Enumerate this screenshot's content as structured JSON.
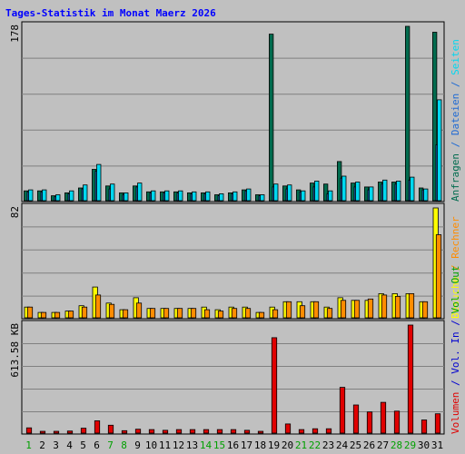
{
  "chart_data": [
    {
      "type": "bar",
      "panel": "top",
      "title": "Tages-Statistik im Monat Maerz 2026",
      "ymax_label": "178",
      "ylim": [
        0,
        178
      ],
      "categories": [
        "1",
        "2",
        "3",
        "4",
        "5",
        "6",
        "7",
        "8",
        "9",
        "10",
        "11",
        "12",
        "13",
        "14",
        "15",
        "16",
        "17",
        "18",
        "19",
        "20",
        "21",
        "22",
        "23",
        "24",
        "25",
        "26",
        "27",
        "28",
        "29",
        "30",
        "31"
      ],
      "series": [
        {
          "name": "Anfragen",
          "color": "#006b4e",
          "values": [
            10,
            10,
            5,
            8,
            13,
            32,
            15,
            8,
            15,
            9,
            9,
            9,
            8,
            8,
            6,
            8,
            11,
            6,
            170,
            15,
            11,
            18,
            17,
            40,
            18,
            14,
            19,
            19,
            178,
            13,
            172
          ]
        },
        {
          "name": "Dateien",
          "color": "#1e6ad4",
          "values": [
            9,
            9,
            4,
            7,
            12,
            30,
            12,
            6,
            14,
            8,
            8,
            8,
            7,
            7,
            5,
            7,
            10,
            5,
            14,
            12,
            9,
            14,
            7,
            23,
            14,
            11,
            17,
            17,
            21,
            11,
            57
          ]
        },
        {
          "name": "Seiten",
          "color": "#00d8f0",
          "values": [
            11,
            11,
            6,
            10,
            16,
            37,
            17,
            8,
            18,
            10,
            10,
            10,
            9,
            9,
            7,
            9,
            12,
            6,
            17,
            16,
            10,
            20,
            10,
            25,
            19,
            14,
            21,
            20,
            24,
            12,
            103
          ]
        }
      ]
    },
    {
      "type": "bar",
      "panel": "middle",
      "ymax_label": "82",
      "ylim": [
        0,
        82
      ],
      "categories": [
        "1",
        "2",
        "3",
        "4",
        "5",
        "6",
        "7",
        "8",
        "9",
        "10",
        "11",
        "12",
        "13",
        "14",
        "15",
        "16",
        "17",
        "18",
        "19",
        "20",
        "21",
        "22",
        "23",
        "24",
        "25",
        "26",
        "27",
        "28",
        "29",
        "30",
        "31"
      ],
      "series": [
        {
          "name": "Besuche",
          "color": "#ffff00",
          "values": [
            8,
            4,
            4,
            5,
            9,
            23,
            11,
            6,
            15,
            7,
            7,
            7,
            7,
            8,
            6,
            8,
            8,
            4,
            8,
            12,
            12,
            12,
            8,
            15,
            13,
            13,
            18,
            18,
            18,
            12,
            82
          ]
        },
        {
          "name": "Rechner",
          "color": "#ff8c00",
          "values": [
            8,
            4,
            4,
            5,
            8,
            17,
            10,
            6,
            11,
            7,
            7,
            7,
            7,
            6,
            5,
            7,
            7,
            4,
            6,
            12,
            9,
            12,
            7,
            13,
            13,
            14,
            17,
            16,
            18,
            12,
            62
          ]
        }
      ]
    },
    {
      "type": "bar",
      "panel": "bottom",
      "ymax_label": "613.58 KB",
      "ylim": [
        0,
        613.58
      ],
      "categories": [
        "1",
        "2",
        "3",
        "4",
        "5",
        "6",
        "7",
        "8",
        "9",
        "10",
        "11",
        "12",
        "13",
        "14",
        "15",
        "16",
        "17",
        "18",
        "19",
        "20",
        "21",
        "22",
        "23",
        "24",
        "25",
        "26",
        "27",
        "28",
        "29",
        "30",
        "31"
      ],
      "series": [
        {
          "name": "Vol. In",
          "color": "#0000d0",
          "values": [
            0,
            0,
            0,
            0,
            0,
            0,
            0,
            0,
            0,
            0,
            0,
            0,
            0,
            0,
            0,
            0,
            0,
            0,
            0,
            0,
            0,
            0,
            0,
            0,
            0,
            0,
            0,
            0,
            0,
            0,
            0
          ]
        },
        {
          "name": "Volumen",
          "color": "#e00000",
          "values": [
            30,
            10,
            6,
            12,
            28,
            70,
            45,
            14,
            22,
            20,
            16,
            20,
            20,
            20,
            20,
            20,
            16,
            10,
            542,
            52,
            20,
            25,
            25,
            260,
            160,
            120,
            175,
            125,
            613.58,
            75,
            110
          ]
        }
      ],
      "legend_labels": [
        "Volumen",
        "/",
        "Vol. In",
        "/",
        "Vol. Out"
      ]
    }
  ],
  "legend_top": [
    {
      "text": "Anfragen",
      "color": "#006b4e"
    },
    {
      "text": " / ",
      "color": "#1e6ad4"
    },
    {
      "text": "Dateien",
      "color": "#1e6ad4"
    },
    {
      "text": " / ",
      "color": "#1e6ad4"
    },
    {
      "text": "Seiten",
      "color": "#00d8f0"
    }
  ],
  "legend_middle": [
    {
      "text": "Besuche",
      "color": "#ffff00"
    },
    {
      "text": " / ",
      "color": "#ff8c00"
    },
    {
      "text": "Rechner",
      "color": "#ff8c00"
    }
  ],
  "legend_bottom": [
    {
      "text": "Volumen",
      "color": "#e00000"
    },
    {
      "text": " / ",
      "color": "#0000d0"
    },
    {
      "text": "Vol. In",
      "color": "#0000d0"
    },
    {
      "text": " / ",
      "color": "#0000d0"
    },
    {
      "text": "Vol. Out",
      "color": "#00a000"
    }
  ],
  "weekend_days": [
    "1",
    "7",
    "8",
    "14",
    "15",
    "21",
    "22",
    "28",
    "29"
  ],
  "colors": {
    "title": "#0000ff",
    "weekend": "#00a000",
    "weekday": "#000000",
    "background": "#c0c0c0",
    "plot_bg": "#c0c0c0",
    "grid": "#808080"
  }
}
